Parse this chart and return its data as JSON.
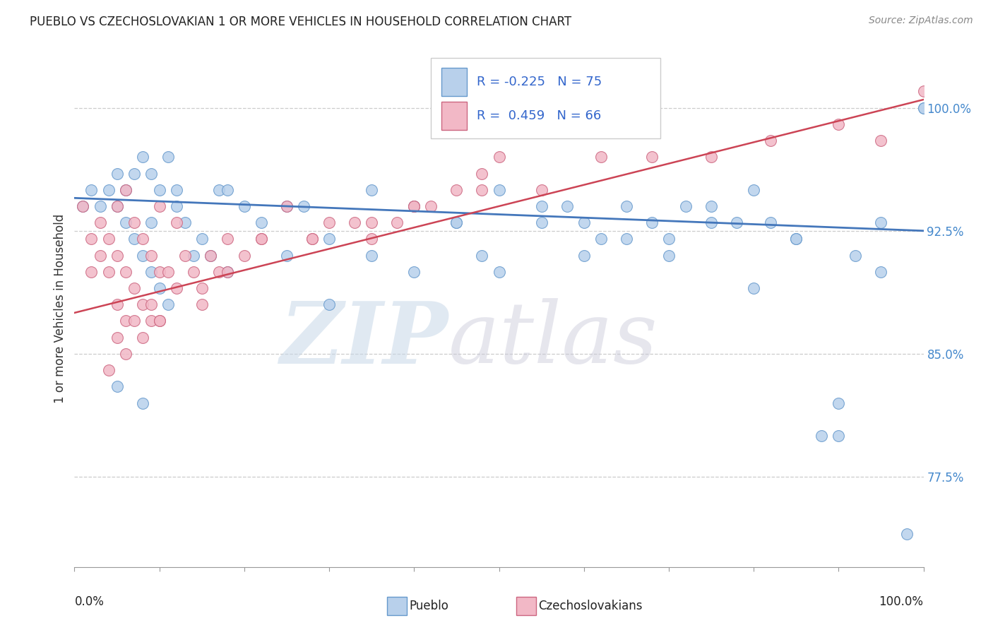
{
  "title": "PUEBLO VS CZECHOSLOVAKIAN 1 OR MORE VEHICLES IN HOUSEHOLD CORRELATION CHART",
  "source_text": "Source: ZipAtlas.com",
  "ylabel": "1 or more Vehicles in Household",
  "watermark_zip": "ZIP",
  "watermark_atlas": "atlas",
  "xlim": [
    0.0,
    100.0
  ],
  "ylim": [
    72.0,
    103.5
  ],
  "yticks": [
    77.5,
    85.0,
    92.5,
    100.0
  ],
  "ytick_labels": [
    "77.5%",
    "85.0%",
    "92.5%",
    "100.0%"
  ],
  "blue_R": -0.225,
  "blue_N": 75,
  "pink_R": 0.459,
  "pink_N": 66,
  "blue_color": "#b8d0eb",
  "pink_color": "#f2b8c6",
  "blue_edge_color": "#6699cc",
  "pink_edge_color": "#cc6680",
  "blue_line_color": "#4477bb",
  "pink_line_color": "#cc4455",
  "legend_label_blue": "Pueblo",
  "legend_label_pink": "Czechoslovakians",
  "blue_trend_x0": 0,
  "blue_trend_x1": 100,
  "blue_trend_y0": 94.5,
  "blue_trend_y1": 92.5,
  "pink_trend_x0": 0,
  "pink_trend_x1": 100,
  "pink_trend_y0": 87.5,
  "pink_trend_y1": 100.5,
  "blue_x": [
    1,
    2,
    3,
    4,
    5,
    5,
    6,
    6,
    7,
    7,
    8,
    8,
    9,
    9,
    9,
    10,
    10,
    11,
    11,
    12,
    13,
    14,
    15,
    16,
    17,
    18,
    20,
    22,
    25,
    27,
    30,
    35,
    40,
    45,
    48,
    50,
    55,
    58,
    60,
    62,
    65,
    68,
    70,
    72,
    75,
    78,
    80,
    82,
    85,
    88,
    90,
    92,
    95,
    98,
    100,
    5,
    8,
    12,
    18,
    25,
    35,
    45,
    55,
    65,
    75,
    85,
    95,
    30,
    40,
    50,
    60,
    70,
    80,
    90,
    100
  ],
  "blue_y": [
    94,
    95,
    94,
    95,
    94,
    96,
    93,
    95,
    92,
    96,
    91,
    97,
    90,
    93,
    96,
    89,
    95,
    88,
    97,
    94,
    93,
    91,
    92,
    91,
    95,
    90,
    94,
    93,
    91,
    94,
    92,
    91,
    94,
    93,
    91,
    95,
    93,
    94,
    93,
    92,
    94,
    93,
    92,
    94,
    93,
    93,
    95,
    93,
    92,
    80,
    80,
    91,
    90,
    74,
    100,
    83,
    82,
    95,
    95,
    94,
    95,
    93,
    94,
    92,
    94,
    92,
    93,
    88,
    90,
    90,
    91,
    91,
    89,
    82,
    100
  ],
  "pink_x": [
    1,
    2,
    2,
    3,
    3,
    4,
    4,
    5,
    5,
    5,
    6,
    6,
    6,
    7,
    7,
    8,
    8,
    9,
    9,
    10,
    10,
    11,
    12,
    13,
    14,
    15,
    16,
    17,
    18,
    20,
    22,
    25,
    28,
    30,
    33,
    35,
    38,
    40,
    42,
    45,
    48,
    50,
    4,
    5,
    6,
    7,
    8,
    9,
    10,
    12,
    15,
    18,
    22,
    28,
    35,
    40,
    48,
    55,
    62,
    68,
    75,
    82,
    90,
    95,
    100,
    10
  ],
  "pink_y": [
    94,
    90,
    92,
    91,
    93,
    90,
    92,
    88,
    91,
    94,
    87,
    90,
    95,
    89,
    93,
    88,
    92,
    87,
    91,
    90,
    94,
    90,
    93,
    91,
    90,
    89,
    91,
    90,
    92,
    91,
    92,
    94,
    92,
    93,
    93,
    92,
    93,
    94,
    94,
    95,
    96,
    97,
    84,
    86,
    85,
    87,
    86,
    88,
    87,
    89,
    88,
    90,
    92,
    92,
    93,
    94,
    95,
    95,
    97,
    97,
    97,
    98,
    99,
    98,
    101,
    87
  ]
}
